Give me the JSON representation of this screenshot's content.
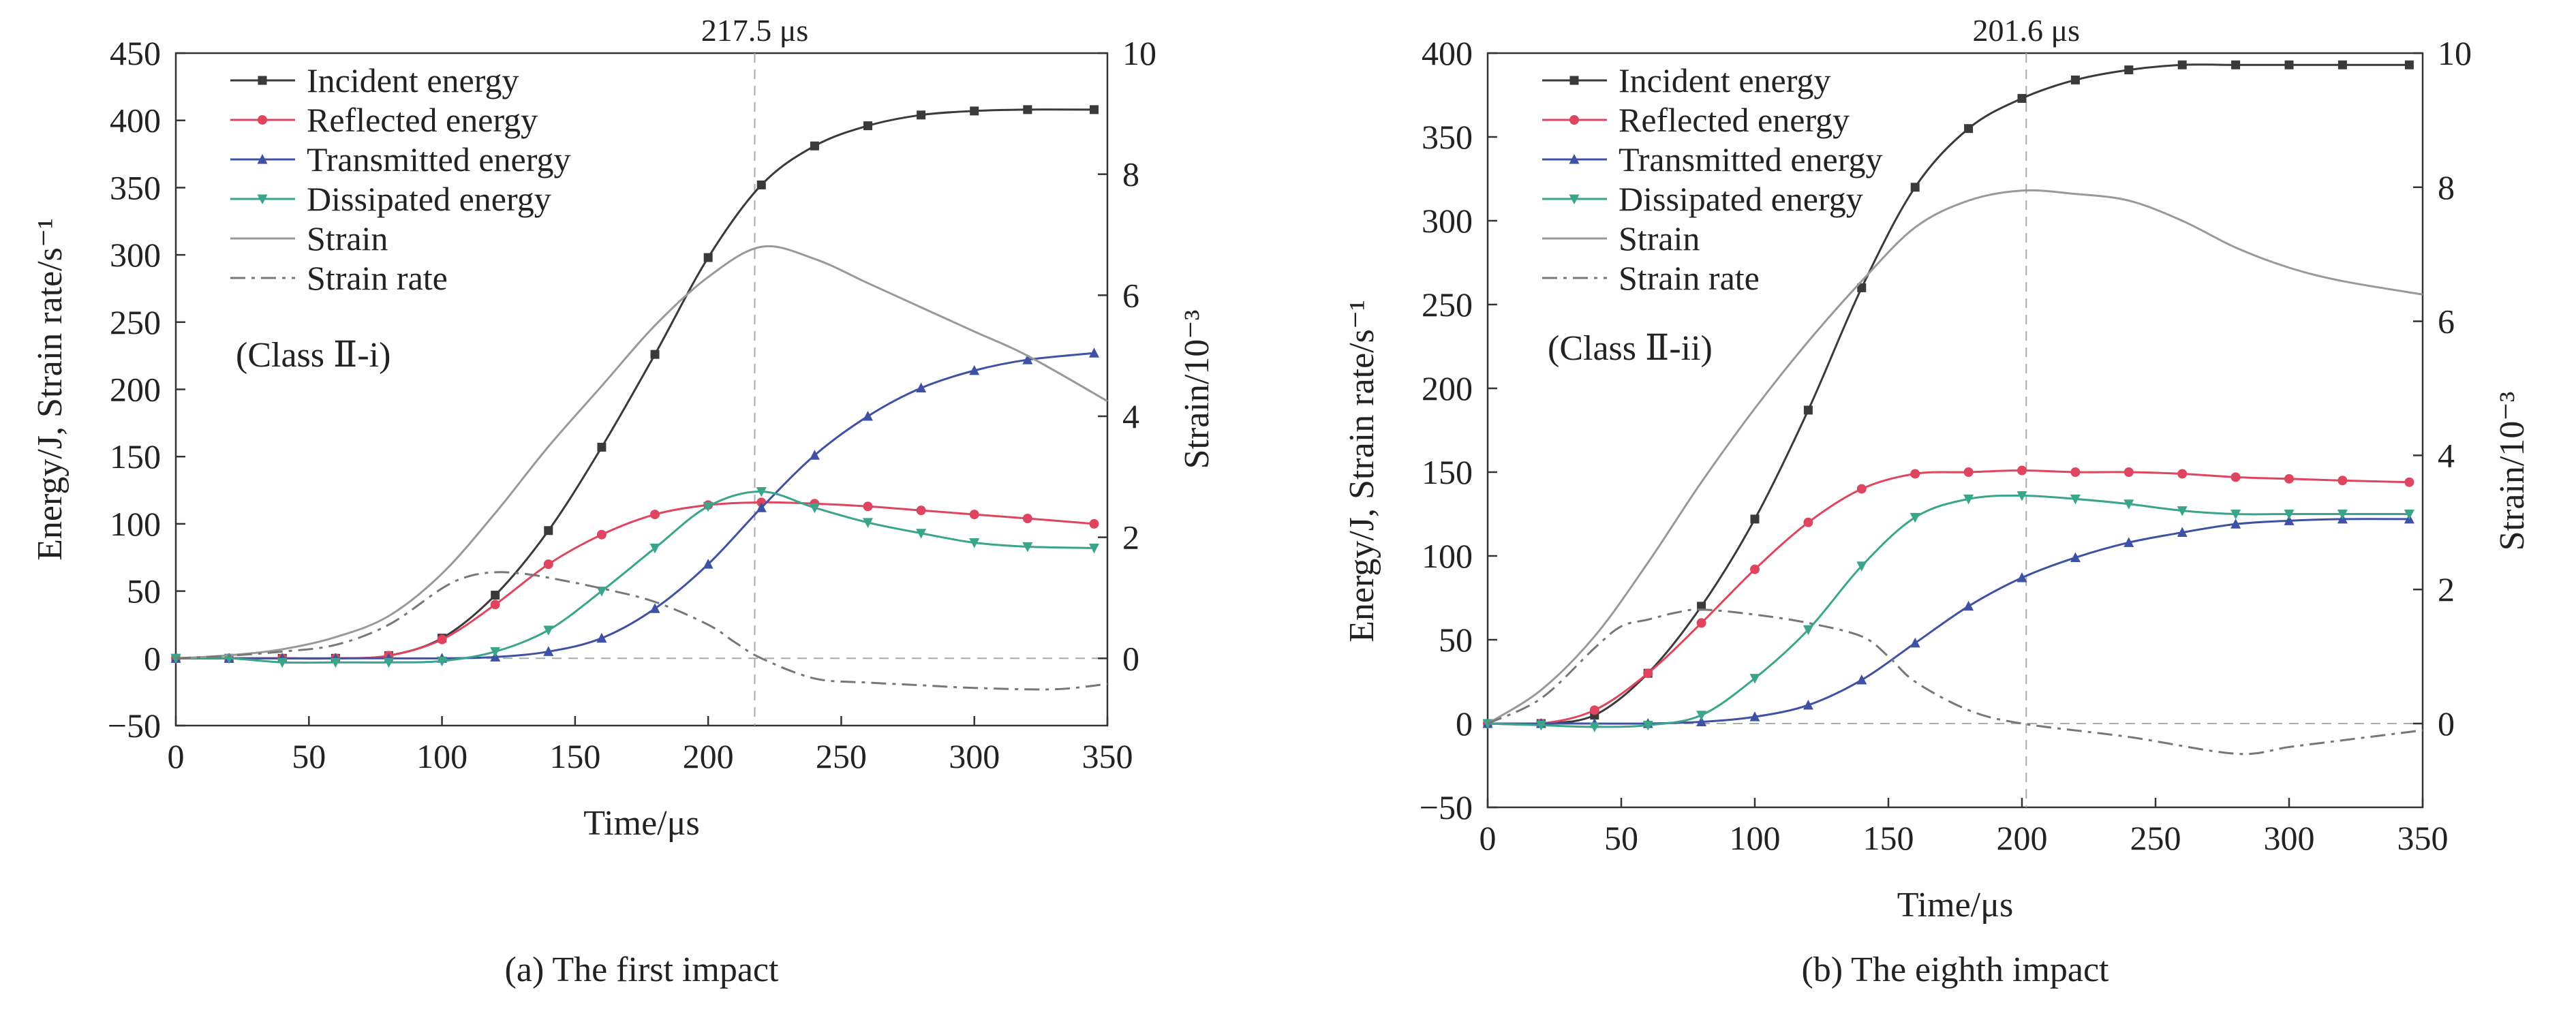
{
  "figure": {
    "panels": [
      {
        "caption": "(a) The first impact",
        "class_label": "(Class Ⅱ-i)",
        "marker_label": "217.5 μs",
        "marker_x": 217.5
      },
      {
        "caption": "(b) The eighth impact",
        "class_label": "(Class Ⅱ-ii)",
        "marker_label": "201.6 μs",
        "marker_x": 201.6
      }
    ]
  },
  "colors": {
    "incident": "#3a3a3a",
    "reflected": "#e0455f",
    "transmitted": "#3f51a5",
    "dissipated": "#3aa58a",
    "strain": "#999999",
    "strain_rate": "#777777",
    "reference": "#aaaaaa",
    "axis": "#333333"
  },
  "chart_data": [
    {
      "type": "line",
      "caption": "(a) The first impact",
      "xlabel": "Time/μs",
      "ylabel": "Energy/J, Strain rate/s⁻¹",
      "y2label": "Strain/10⁻³",
      "xlim": [
        0,
        350
      ],
      "ylim": [
        -50,
        450
      ],
      "y2lim": [
        -1,
        10
      ],
      "xticks": [
        0,
        50,
        100,
        150,
        200,
        250,
        300,
        350
      ],
      "yticks": [
        -50,
        0,
        50,
        100,
        150,
        200,
        250,
        300,
        350,
        400,
        450
      ],
      "y2ticks": [
        0,
        2,
        4,
        6,
        8,
        10
      ],
      "vline": 217.5,
      "vline_label": "217.5 μs",
      "legend_position": "top-left",
      "grid": false,
      "series": [
        {
          "name": "Incident energy",
          "key": "incident",
          "axis": "left",
          "marker": "square",
          "x": [
            0,
            20,
            40,
            60,
            80,
            100,
            120,
            140,
            160,
            180,
            200,
            220,
            240,
            260,
            280,
            300,
            320,
            345
          ],
          "y": [
            0,
            0,
            0,
            0,
            2,
            15,
            47,
            95,
            157,
            226,
            298,
            352,
            381,
            396,
            404,
            407,
            408,
            408
          ]
        },
        {
          "name": "Reflected energy",
          "key": "reflected",
          "axis": "left",
          "marker": "circle",
          "x": [
            0,
            20,
            40,
            60,
            80,
            100,
            120,
            140,
            160,
            180,
            200,
            220,
            240,
            260,
            280,
            300,
            320,
            345
          ],
          "y": [
            0,
            0,
            0,
            0,
            2,
            14,
            40,
            70,
            92,
            107,
            114,
            116,
            115,
            113,
            110,
            107,
            104,
            100
          ]
        },
        {
          "name": "Transmitted energy",
          "key": "transmitted",
          "axis": "left",
          "marker": "triangle-up",
          "x": [
            0,
            20,
            40,
            60,
            80,
            100,
            120,
            140,
            160,
            180,
            200,
            220,
            240,
            260,
            280,
            300,
            320,
            345
          ],
          "y": [
            0,
            0,
            0,
            0,
            0,
            0,
            1,
            5,
            15,
            37,
            70,
            112,
            151,
            180,
            201,
            214,
            222,
            227
          ]
        },
        {
          "name": "Dissipated energy",
          "key": "dissipated",
          "axis": "left",
          "marker": "triangle-down",
          "x": [
            0,
            20,
            40,
            60,
            80,
            100,
            120,
            140,
            160,
            180,
            200,
            220,
            240,
            260,
            280,
            300,
            320,
            345
          ],
          "y": [
            0,
            0,
            -3,
            -3,
            -3,
            -2,
            5,
            21,
            50,
            82,
            113,
            124,
            112,
            101,
            93,
            86,
            83,
            82
          ]
        },
        {
          "name": "Strain",
          "key": "strain",
          "axis": "right",
          "marker": "none",
          "x": [
            0,
            20,
            40,
            60,
            80,
            100,
            120,
            140,
            160,
            180,
            200,
            220,
            240,
            260,
            280,
            300,
            320,
            350
          ],
          "y": [
            0,
            0.05,
            0.15,
            0.35,
            0.7,
            1.4,
            2.4,
            3.5,
            4.5,
            5.5,
            6.3,
            6.8,
            6.6,
            6.2,
            5.8,
            5.4,
            5.0,
            4.25
          ]
        },
        {
          "name": "Strain rate",
          "key": "strain_rate",
          "axis": "left",
          "marker": "none",
          "x": [
            0,
            20,
            40,
            60,
            80,
            100,
            110,
            120,
            130,
            140,
            160,
            180,
            200,
            210,
            220,
            240,
            260,
            280,
            300,
            330,
            350
          ],
          "y": [
            0,
            2,
            5,
            10,
            25,
            52,
            61,
            64,
            63,
            60,
            52,
            42,
            25,
            12,
            0,
            -15,
            -18,
            -20,
            -22,
            -23,
            -19
          ]
        }
      ]
    },
    {
      "type": "line",
      "caption": "(b) The eighth impact",
      "xlabel": "Time/μs",
      "ylabel": "Energy/J, Strain rate/s⁻¹",
      "y2label": "Strain/10⁻³",
      "xlim": [
        0,
        350
      ],
      "ylim": [
        -50,
        400
      ],
      "y2lim": [
        -1,
        10
      ],
      "xticks": [
        0,
        50,
        100,
        150,
        200,
        250,
        300,
        350
      ],
      "yticks": [
        -50,
        0,
        50,
        100,
        150,
        200,
        250,
        300,
        350,
        400
      ],
      "y2ticks": [
        0,
        2,
        4,
        6,
        8,
        10
      ],
      "vline": 201.6,
      "vline_label": "201.6 μs",
      "legend_position": "top-left",
      "grid": false,
      "series": [
        {
          "name": "Incident energy",
          "key": "incident",
          "axis": "left",
          "marker": "square",
          "x": [
            0,
            20,
            40,
            60,
            80,
            100,
            120,
            140,
            160,
            180,
            200,
            220,
            240,
            260,
            280,
            300,
            320,
            345
          ],
          "y": [
            0,
            0,
            5,
            30,
            70,
            122,
            187,
            260,
            320,
            355,
            373,
            384,
            390,
            393,
            393,
            393,
            393,
            393
          ]
        },
        {
          "name": "Reflected energy",
          "key": "reflected",
          "axis": "left",
          "marker": "circle",
          "x": [
            0,
            20,
            40,
            60,
            80,
            100,
            120,
            140,
            160,
            180,
            200,
            220,
            240,
            260,
            280,
            300,
            320,
            345
          ],
          "y": [
            0,
            0,
            8,
            30,
            60,
            92,
            120,
            140,
            149,
            150,
            151,
            150,
            150,
            149,
            147,
            146,
            145,
            144
          ]
        },
        {
          "name": "Transmitted energy",
          "key": "transmitted",
          "axis": "left",
          "marker": "triangle-up",
          "x": [
            0,
            20,
            40,
            60,
            80,
            100,
            120,
            140,
            160,
            180,
            200,
            220,
            240,
            260,
            280,
            300,
            320,
            345
          ],
          "y": [
            0,
            0,
            0,
            0,
            1,
            4,
            11,
            26,
            48,
            70,
            87,
            99,
            108,
            114,
            119,
            121,
            122,
            122
          ]
        },
        {
          "name": "Dissipated energy",
          "key": "dissipated",
          "axis": "left",
          "marker": "triangle-down",
          "x": [
            0,
            20,
            40,
            60,
            80,
            100,
            120,
            140,
            160,
            180,
            200,
            220,
            240,
            260,
            280,
            300,
            320,
            345
          ],
          "y": [
            0,
            -1,
            -2,
            -1,
            5,
            27,
            56,
            94,
            123,
            134,
            136,
            134,
            131,
            127,
            125,
            125,
            125,
            125
          ]
        },
        {
          "name": "Strain",
          "key": "strain",
          "axis": "right",
          "marker": "none",
          "x": [
            0,
            20,
            40,
            60,
            80,
            100,
            120,
            140,
            160,
            180,
            200,
            220,
            240,
            260,
            280,
            300,
            320,
            350
          ],
          "y": [
            0,
            0.5,
            1.3,
            2.4,
            3.6,
            4.7,
            5.7,
            6.6,
            7.4,
            7.8,
            7.95,
            7.9,
            7.8,
            7.5,
            7.1,
            6.8,
            6.6,
            6.4
          ]
        },
        {
          "name": "Strain rate",
          "key": "strain_rate",
          "axis": "left",
          "marker": "none",
          "x": [
            0,
            20,
            40,
            50,
            60,
            70,
            80,
            100,
            120,
            140,
            150,
            160,
            180,
            200,
            240,
            280,
            300,
            320,
            340,
            350
          ],
          "y": [
            0,
            15,
            45,
            58,
            62,
            66,
            68,
            65,
            60,
            52,
            40,
            25,
            8,
            0,
            -8,
            -18,
            -14,
            -10,
            -6,
            -4
          ]
        }
      ]
    }
  ]
}
